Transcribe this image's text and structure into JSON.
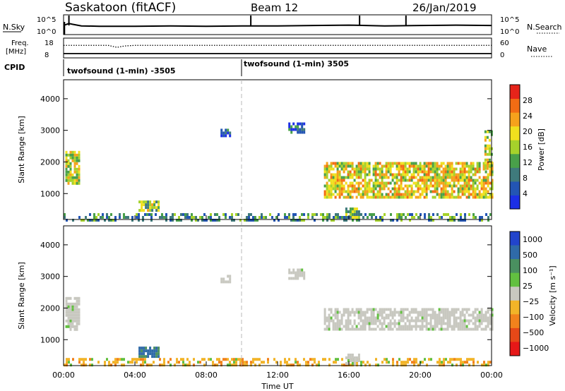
{
  "header": {
    "station": "Saskatoon (fitACF)",
    "beam": "Beam 12",
    "date": "26/Jan/2019"
  },
  "chart_data": [
    {
      "type": "line",
      "panel": "sky-search",
      "left_label": "N.Sky",
      "right_label": "N.Search",
      "left_ticks": [
        "10^5",
        "10^0"
      ],
      "right_ticks": [
        "10^5",
        "10^0"
      ],
      "series": [
        {
          "name": "N.Sky",
          "x": [
            0.0,
            0.3,
            0.5,
            1.0,
            2.0,
            4.0,
            6.0,
            8.0,
            10.0,
            12.0,
            14.0,
            16.0,
            18.0,
            20.0,
            22.0,
            24.0
          ],
          "y": [
            2.3,
            2.8,
            2.6,
            2.2,
            2.1,
            2.1,
            2.2,
            2.1,
            2.2,
            2.2,
            2.3,
            2.4,
            2.2,
            2.3,
            2.4,
            2.3
          ]
        }
      ],
      "spikes_x": [
        0.3,
        10.5,
        16.6,
        19.2
      ]
    },
    {
      "type": "line",
      "panel": "freq-nave",
      "left_label": "Freq.",
      "left_unit": "[MHz]",
      "right_label": "Nave",
      "left_ticks": [
        "18",
        "8"
      ],
      "right_ticks": [
        "60",
        "0"
      ],
      "series": [
        {
          "name": "Freq.",
          "style": "solid",
          "x": [
            0,
            24
          ],
          "y": [
            10.2,
            10.2
          ]
        },
        {
          "name": "Nave",
          "style": "dotted",
          "x": [
            0.0,
            2.5,
            3.0,
            3.4,
            4.0,
            24.0
          ],
          "y": [
            38,
            38,
            32,
            36,
            38,
            38
          ]
        }
      ]
    },
    {
      "type": "table",
      "panel": "cpid",
      "label": "CPID",
      "segments": [
        {
          "start": 0.0,
          "end": 10.0,
          "text": "twofsound (1-min) -3505"
        },
        {
          "start": 10.0,
          "end": 24.0,
          "text": "twofsound (1-min) 3505"
        }
      ]
    },
    {
      "type": "heatmap",
      "panel": "power",
      "ylabel": "Slant Range [km]",
      "yticks": [
        1000,
        2000,
        3000,
        4000
      ],
      "ylim": [
        180,
        4600
      ],
      "xlim": [
        0,
        24
      ],
      "colorbar": {
        "label": "Power [dB]",
        "ticks": [
          4,
          8,
          12,
          16,
          20,
          24,
          28
        ],
        "range": [
          0,
          32
        ],
        "colors": [
          "#1c2fe6",
          "#2355b4",
          "#3f7a7c",
          "#49a04a",
          "#a6d22b",
          "#f0e01e",
          "#f6a21c",
          "#f26c14",
          "#e6241a"
        ]
      },
      "features": [
        {
          "t": [
            0.1,
            0.9
          ],
          "r": [
            1300,
            2350
          ],
          "level": 18
        },
        {
          "t": [
            0.0,
            24.0
          ],
          "r": [
            200,
            380
          ],
          "level": 10
        },
        {
          "t": [
            4.2,
            5.3
          ],
          "r": [
            480,
            780
          ],
          "level": 15
        },
        {
          "t": [
            8.8,
            9.3
          ],
          "r": [
            2800,
            3050
          ],
          "level": 7
        },
        {
          "t": [
            12.6,
            13.5
          ],
          "r": [
            2900,
            3250
          ],
          "level": 6
        },
        {
          "t": [
            14.6,
            24.0
          ],
          "r": [
            900,
            2000
          ],
          "level": 20
        },
        {
          "t": [
            15.8,
            16.6
          ],
          "r": [
            280,
            560
          ],
          "level": 14
        },
        {
          "t": [
            23.6,
            24.0
          ],
          "r": [
            1800,
            3000
          ],
          "level": 18
        }
      ]
    },
    {
      "type": "heatmap",
      "panel": "velocity",
      "ylabel": "Slant Range [km]",
      "yticks": [
        1000,
        2000,
        3000,
        4000
      ],
      "ylim": [
        180,
        4600
      ],
      "xlim": [
        0,
        24
      ],
      "xticks": [
        "00:00",
        "04:00",
        "08:00",
        "12:00",
        "16:00",
        "20:00",
        "00:00"
      ],
      "xlabel": "Time UT",
      "colorbar": {
        "label": "Velocity [m s⁻¹]",
        "ticks": [
          "1000",
          "500",
          "100",
          "25",
          "−25",
          "−100",
          "−500",
          "−1000"
        ],
        "colors": [
          "#2244cc",
          "#2f6aa8",
          "#4a9060",
          "#62c040",
          "#c8c8c0",
          "#f2b428",
          "#f2821c",
          "#e64818",
          "#e61818"
        ]
      },
      "features": [
        {
          "t": [
            0.1,
            0.9
          ],
          "r": [
            1300,
            2350
          ],
          "kind": "gs"
        },
        {
          "t": [
            0.0,
            24.0
          ],
          "r": [
            200,
            420
          ],
          "kind": "neg"
        },
        {
          "t": [
            4.2,
            5.3
          ],
          "r": [
            480,
            780
          ],
          "kind": "pos"
        },
        {
          "t": [
            8.8,
            9.3
          ],
          "r": [
            2800,
            3050
          ],
          "kind": "gs"
        },
        {
          "t": [
            12.6,
            13.5
          ],
          "r": [
            2900,
            3250
          ],
          "kind": "gs"
        },
        {
          "t": [
            14.6,
            24.0
          ],
          "r": [
            1350,
            2000
          ],
          "kind": "gs"
        },
        {
          "t": [
            15.8,
            16.6
          ],
          "r": [
            280,
            560
          ],
          "kind": "gs"
        }
      ]
    }
  ]
}
